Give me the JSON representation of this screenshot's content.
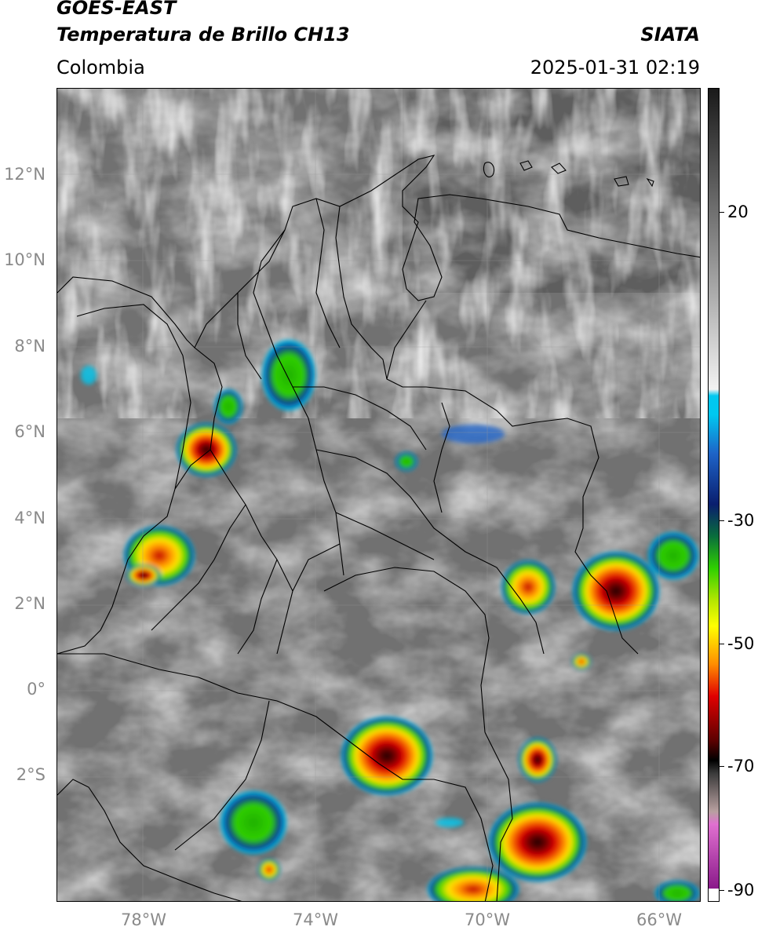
{
  "header": {
    "satellite": "GOES-EAST",
    "product": "Temperatura de Brillo CH13",
    "region": "Colombia",
    "agency": "SIATA",
    "datetime": "2025-01-31 02:19"
  },
  "map": {
    "lat_labels": [
      "12°N",
      "10°N",
      "8°N",
      "6°N",
      "4°N",
      "2°N",
      "0°",
      "2°S"
    ],
    "lon_labels": [
      "78°W",
      "74°W",
      "70°W",
      "66°W"
    ],
    "lat_range": [
      -4.7,
      14.1
    ],
    "lon_range": [
      -80.0,
      -65.0
    ]
  },
  "colorbar": {
    "labels": [
      "20",
      "-30",
      "-50",
      "-70",
      "-90"
    ],
    "values": [
      20,
      -30,
      -50,
      -70,
      -90
    ],
    "range": [
      -92,
      35
    ],
    "colors": {
      "warm_gray_dark": "#1a1a1a",
      "cold_gray_light": "#f2f2f2",
      "cyan": "#00c8f0",
      "dark_blue": "#0a1e6e",
      "green": "#2fd000",
      "yellow": "#ffff00",
      "orange": "#ff8c00",
      "red": "#e00000",
      "dark_red": "#5a0000",
      "magenta": "#e070d0",
      "purple": "#8a1a8a"
    }
  }
}
